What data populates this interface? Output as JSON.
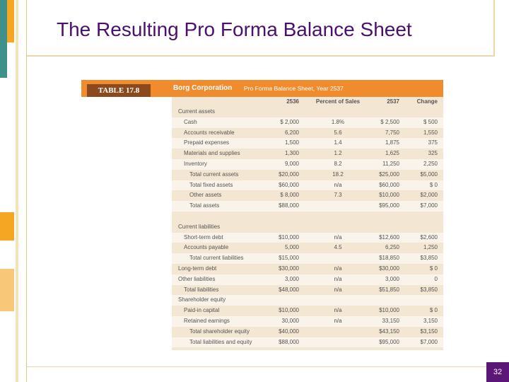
{
  "slide": {
    "title": "The Resulting Pro Forma Balance Sheet",
    "page_number": "32"
  },
  "table": {
    "tag": "TABLE 17.8",
    "company": "Borg Corporation",
    "caption": "Pro Forma Balance Sheet, Year 2537",
    "columns": [
      "2536",
      "Percent of Sales",
      "2537",
      "Change"
    ],
    "rows": [
      {
        "label": "Current assets",
        "cells": [
          null,
          null,
          null,
          null
        ]
      },
      {
        "label": "Cash",
        "cells": [
          "$ 2,000",
          "1.8%",
          "$ 2,500",
          "$ 500"
        ]
      },
      {
        "label": "Accounts receivable",
        "cells": [
          "6,200",
          "5.6",
          "7,750",
          "1,550"
        ]
      },
      {
        "label": "Prepaid expenses",
        "cells": [
          "1,500",
          "1.4",
          "1,875",
          "375"
        ]
      },
      {
        "label": "Materials and supplies",
        "cells": [
          "1,300",
          "1.2",
          "1,625",
          "325"
        ]
      },
      {
        "label": "Inventory",
        "cells": [
          "9,000",
          "8.2",
          "11,250",
          "2,250"
        ]
      },
      {
        "label": "Total current assets",
        "cells": [
          "$20,000",
          "18.2",
          "$25,000",
          "$5,000"
        ]
      },
      {
        "label": "Total fixed assets",
        "cells": [
          "$60,000",
          "n/a",
          "$60,000",
          "$ 0"
        ]
      },
      {
        "label": "Other assets",
        "cells": [
          "$ 8,000",
          "7.3",
          "$10,000",
          "$2,000"
        ]
      },
      {
        "label": "Total assets",
        "cells": [
          "$88,000",
          null,
          "$95,000",
          "$7,000"
        ]
      },
      {
        "label": "Current liabilities",
        "cells": [
          null,
          null,
          null,
          null
        ]
      },
      {
        "label": "Short-term debt",
        "cells": [
          "$10,000",
          "n/a",
          "$12,600",
          "$2,600"
        ]
      },
      {
        "label": "Accounts payable",
        "cells": [
          "5,000",
          "4.5",
          "6,250",
          "1,250"
        ]
      },
      {
        "label": "Total current liabilities",
        "cells": [
          "$15,000",
          null,
          "$18,850",
          "$3,850"
        ]
      },
      {
        "label": "Long-term debt",
        "cells": [
          "$30,000",
          "n/a",
          "$30,000",
          "$ 0"
        ]
      },
      {
        "label": "Other liabilities",
        "cells": [
          "3,000",
          "n/a",
          "3,000",
          "0"
        ]
      },
      {
        "label": "Total liabilities",
        "cells": [
          "$48,000",
          "n/a",
          "$51,850",
          "$3,850"
        ]
      },
      {
        "label": "Shareholder equity",
        "cells": [
          null,
          null,
          null,
          null
        ]
      },
      {
        "label": "Paid-in capital",
        "cells": [
          "$10,000",
          "n/a",
          "$10,000",
          "$ 0"
        ]
      },
      {
        "label": "Retained earnings",
        "cells": [
          "30,000",
          "n/a",
          "33,150",
          "3,150"
        ]
      },
      {
        "label": "Total shareholder equity",
        "cells": [
          "$40,000",
          null,
          "$43,150",
          "$3,150"
        ]
      },
      {
        "label": "Total liabilities and equity",
        "cells": [
          "$88,000",
          null,
          "$95,000",
          "$7,000"
        ]
      }
    ]
  }
}
